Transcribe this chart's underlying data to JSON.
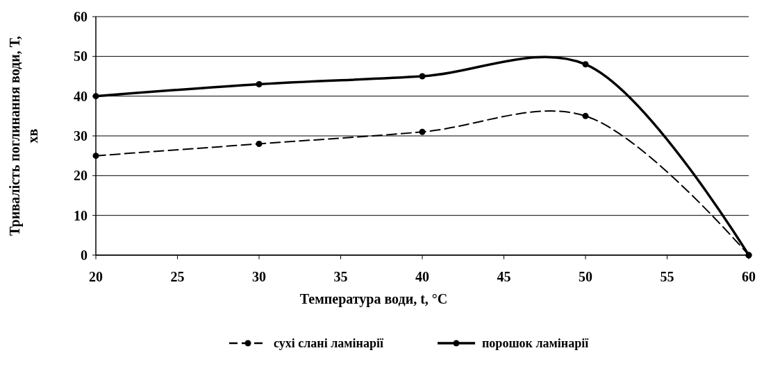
{
  "chart_data": {
    "type": "line",
    "xlabel": "Температура води, t, °C",
    "ylabel": "Тривалість поглинання води, Т, хв",
    "x": [
      20,
      30,
      40,
      50,
      60
    ],
    "series": [
      {
        "name": "сухі слані ламінарії",
        "color": "#000000",
        "line_style": "dashed",
        "values": [
          25,
          28,
          31,
          35,
          0
        ]
      },
      {
        "name": "порошок ламінарії",
        "color": "#000000",
        "line_style": "solid",
        "values": [
          40,
          43,
          45,
          48,
          0
        ]
      }
    ],
    "xlim": [
      20,
      60
    ],
    "xticks": [
      20,
      25,
      30,
      35,
      40,
      45,
      50,
      55,
      60
    ],
    "ylim": [
      0,
      60
    ],
    "yticks": [
      0,
      10,
      20,
      30,
      40,
      50,
      60
    ],
    "grid": "y",
    "legend": "bottom",
    "marker": "circle"
  }
}
